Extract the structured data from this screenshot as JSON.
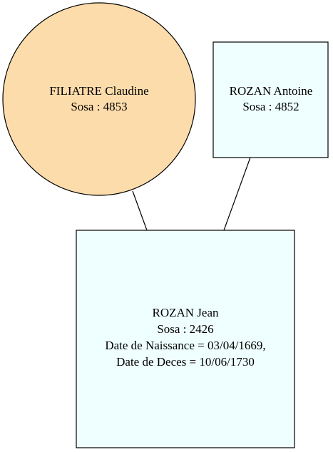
{
  "colors": {
    "female_fill": "#fddcab",
    "male_fill": "#efffff",
    "stroke": "#000000"
  },
  "nodes": {
    "mother": {
      "shape": "ellipse",
      "name": "FILIATRE Claudine",
      "sosa": "Sosa : 4853"
    },
    "father": {
      "shape": "box",
      "name": "ROZAN Antoine",
      "sosa": "Sosa : 4852"
    },
    "child": {
      "shape": "box",
      "name": "ROZAN Jean",
      "sosa": "Sosa : 2426",
      "birth": "Date de Naissance = 03/04/1669,",
      "death": "Date de Deces = 10/06/1730"
    }
  }
}
